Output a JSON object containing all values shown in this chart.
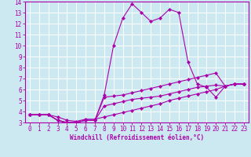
{
  "xlabel": "Windchill (Refroidissement éolien,°C)",
  "ylabel": "",
  "xlim": [
    -0.5,
    23.5
  ],
  "ylim": [
    3,
    14
  ],
  "xticks": [
    0,
    1,
    2,
    3,
    4,
    5,
    6,
    7,
    8,
    9,
    10,
    11,
    12,
    13,
    14,
    15,
    16,
    17,
    18,
    19,
    20,
    21,
    22,
    23
  ],
  "yticks": [
    3,
    4,
    5,
    6,
    7,
    8,
    9,
    10,
    11,
    12,
    13,
    14
  ],
  "bg_color": "#cce8f0",
  "line_color": "#aa00aa",
  "grid_color": "#ffffff",
  "tick_fontsize": 5.5,
  "xlabel_fontsize": 5.5,
  "lines": [
    {
      "x": [
        0,
        1,
        2,
        3,
        4,
        5,
        6,
        7,
        8,
        9,
        10,
        11,
        12,
        13,
        14,
        15,
        16,
        17,
        18,
        19,
        20,
        21,
        22,
        23
      ],
      "y": [
        3.7,
        3.7,
        3.7,
        3.2,
        2.9,
        3.0,
        3.2,
        3.2,
        5.5,
        10.0,
        12.5,
        13.8,
        13.0,
        12.2,
        12.5,
        13.3,
        13.0,
        8.5,
        6.5,
        6.2,
        5.3,
        6.3,
        6.5,
        6.5
      ]
    },
    {
      "x": [
        0,
        1,
        2,
        3,
        4,
        5,
        6,
        7,
        8,
        9,
        10,
        11,
        12,
        13,
        14,
        15,
        16,
        17,
        18,
        19,
        20,
        21,
        22,
        23
      ],
      "y": [
        3.7,
        3.7,
        3.7,
        3.2,
        3.0,
        3.0,
        3.2,
        3.2,
        5.3,
        5.4,
        5.5,
        5.7,
        5.9,
        6.1,
        6.3,
        6.5,
        6.7,
        6.9,
        7.1,
        7.3,
        7.5,
        6.3,
        6.5,
        6.5
      ]
    },
    {
      "x": [
        0,
        1,
        2,
        3,
        4,
        5,
        6,
        7,
        8,
        9,
        10,
        11,
        12,
        13,
        14,
        15,
        16,
        17,
        18,
        19,
        20,
        21,
        22,
        23
      ],
      "y": [
        3.7,
        3.7,
        3.7,
        3.2,
        3.0,
        3.0,
        3.2,
        3.2,
        4.5,
        4.7,
        4.9,
        5.1,
        5.2,
        5.3,
        5.4,
        5.6,
        5.8,
        6.0,
        6.2,
        6.3,
        6.4,
        6.3,
        6.5,
        6.5
      ]
    },
    {
      "x": [
        0,
        1,
        2,
        3,
        4,
        5,
        6,
        7,
        8,
        9,
        10,
        11,
        12,
        13,
        14,
        15,
        16,
        17,
        18,
        19,
        20,
        21,
        22,
        23
      ],
      "y": [
        3.7,
        3.7,
        3.7,
        3.5,
        3.2,
        3.1,
        3.3,
        3.3,
        3.5,
        3.7,
        3.9,
        4.1,
        4.3,
        4.5,
        4.7,
        5.0,
        5.2,
        5.4,
        5.6,
        5.8,
        6.0,
        6.3,
        6.5,
        6.5
      ]
    }
  ]
}
